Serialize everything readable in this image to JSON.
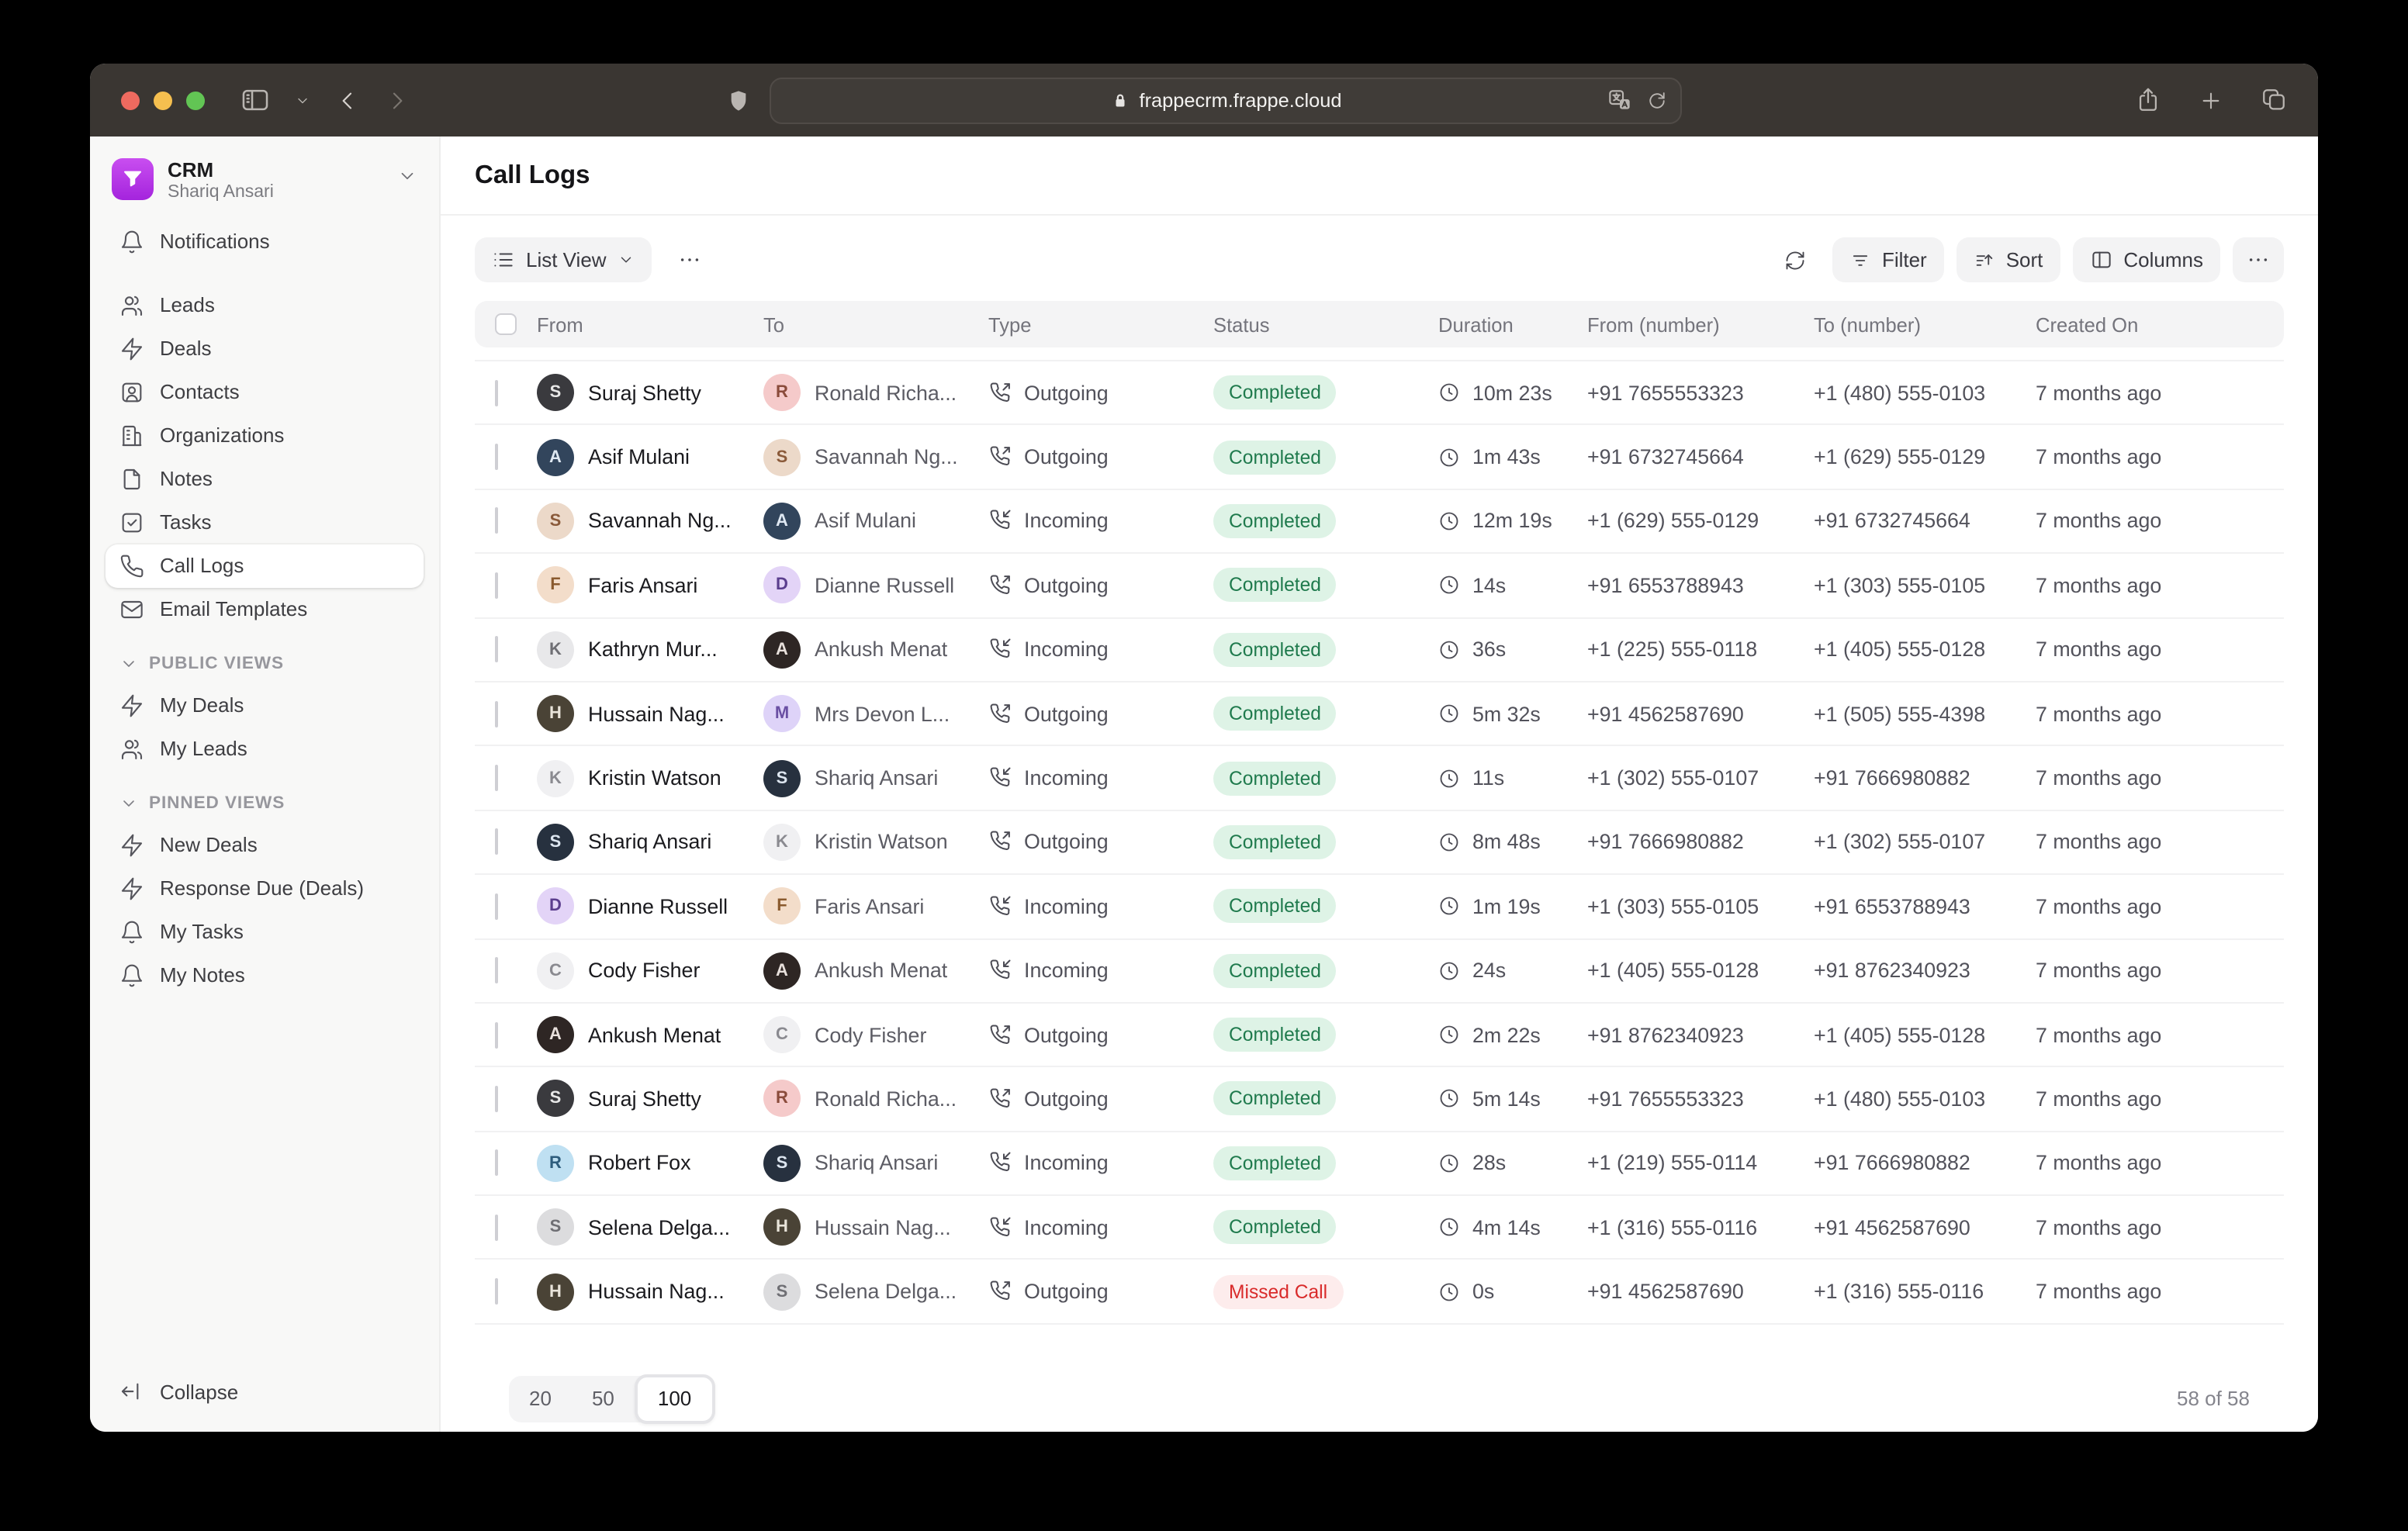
{
  "browser": {
    "url": "frappecrm.frappe.cloud",
    "traffic_lights": {
      "close": "#ee6a5f",
      "minimize": "#f5bf4f",
      "zoom": "#62c554"
    }
  },
  "sidebar": {
    "app": {
      "title": "CRM",
      "user": "Shariq Ansari"
    },
    "items": [
      {
        "label": "Notifications",
        "icon": "bell",
        "gap_after": true
      },
      {
        "label": "Leads",
        "icon": "users"
      },
      {
        "label": "Deals",
        "icon": "zap"
      },
      {
        "label": "Contacts",
        "icon": "contact"
      },
      {
        "label": "Organizations",
        "icon": "building"
      },
      {
        "label": "Notes",
        "icon": "file"
      },
      {
        "label": "Tasks",
        "icon": "check-square"
      },
      {
        "label": "Call Logs",
        "icon": "phone",
        "active": true
      },
      {
        "label": "Email Templates",
        "icon": "mail"
      }
    ],
    "sections": [
      {
        "label": "PUBLIC VIEWS",
        "items": [
          {
            "label": "My Deals",
            "icon": "zap"
          },
          {
            "label": "My Leads",
            "icon": "users"
          }
        ]
      },
      {
        "label": "PINNED VIEWS",
        "items": [
          {
            "label": "New Deals",
            "icon": "zap"
          },
          {
            "label": "Response Due (Deals)",
            "icon": "zap"
          },
          {
            "label": "My Tasks",
            "icon": "bell"
          },
          {
            "label": "My Notes",
            "icon": "bell"
          }
        ]
      }
    ],
    "collapse_label": "Collapse"
  },
  "main": {
    "page_title": "Call Logs",
    "toolbar": {
      "view_label": "List View",
      "filter_label": "Filter",
      "sort_label": "Sort",
      "columns_label": "Columns"
    },
    "table": {
      "columns": [
        "From",
        "To",
        "Type",
        "Status",
        "Duration",
        "From (number)",
        "To (number)",
        "Created On"
      ],
      "rows": [
        {
          "from_name": "Suraj Shetty",
          "from_avatar": "suraj",
          "to_name": "Ronald Richa...",
          "to_avatar": "ronald",
          "type": "Outgoing",
          "status": "Completed",
          "duration": "10m 23s",
          "from_number": "+91 7655553323",
          "to_number": "+1 (480) 555-0103",
          "created": "7 months ago"
        },
        {
          "from_name": "Asif Mulani",
          "from_avatar": "asif",
          "to_name": "Savannah Ng...",
          "to_avatar": "savannah",
          "type": "Outgoing",
          "status": "Completed",
          "duration": "1m 43s",
          "from_number": "+91 6732745664",
          "to_number": "+1 (629) 555-0129",
          "created": "7 months ago"
        },
        {
          "from_name": "Savannah Ng...",
          "from_avatar": "savannah",
          "to_name": "Asif Mulani",
          "to_avatar": "asif",
          "type": "Incoming",
          "status": "Completed",
          "duration": "12m 19s",
          "from_number": "+1 (629) 555-0129",
          "to_number": "+91 6732745664",
          "created": "7 months ago"
        },
        {
          "from_name": "Faris Ansari",
          "from_avatar": "faris",
          "to_name": "Dianne Russell",
          "to_avatar": "dianne",
          "type": "Outgoing",
          "status": "Completed",
          "duration": "14s",
          "from_number": "+91 6553788943",
          "to_number": "+1 (303) 555-0105",
          "created": "7 months ago"
        },
        {
          "from_name": "Kathryn Mur...",
          "from_avatar": "kathryn",
          "to_name": "Ankush Menat",
          "to_avatar": "ankush",
          "type": "Incoming",
          "status": "Completed",
          "duration": "36s",
          "from_number": "+1 (225) 555-0118",
          "to_number": "+1 (405) 555-0128",
          "created": "7 months ago"
        },
        {
          "from_name": "Hussain Nag...",
          "from_avatar": "hussain",
          "to_name": "Mrs Devon L...",
          "to_avatar": "devon",
          "type": "Outgoing",
          "status": "Completed",
          "duration": "5m 32s",
          "from_number": "+91 4562587690",
          "to_number": "+1 (505) 555-4398",
          "created": "7 months ago"
        },
        {
          "from_name": "Kristin Watson",
          "from_avatar": "kristin",
          "to_name": "Shariq Ansari",
          "to_avatar": "shariq",
          "type": "Incoming",
          "status": "Completed",
          "duration": "11s",
          "from_number": "+1 (302) 555-0107",
          "to_number": "+91 7666980882",
          "created": "7 months ago"
        },
        {
          "from_name": "Shariq Ansari",
          "from_avatar": "shariq",
          "to_name": "Kristin Watson",
          "to_avatar": "kristin",
          "type": "Outgoing",
          "status": "Completed",
          "duration": "8m 48s",
          "from_number": "+91 7666980882",
          "to_number": "+1 (302) 555-0107",
          "created": "7 months ago"
        },
        {
          "from_name": "Dianne Russell",
          "from_avatar": "dianne",
          "to_name": "Faris Ansari",
          "to_avatar": "faris",
          "type": "Incoming",
          "status": "Completed",
          "duration": "1m 19s",
          "from_number": "+1 (303) 555-0105",
          "to_number": "+91 6553788943",
          "created": "7 months ago"
        },
        {
          "from_name": "Cody Fisher",
          "from_avatar": "cody",
          "to_name": "Ankush Menat",
          "to_avatar": "ankush",
          "type": "Incoming",
          "status": "Completed",
          "duration": "24s",
          "from_number": "+1 (405) 555-0128",
          "to_number": "+91 8762340923",
          "created": "7 months ago"
        },
        {
          "from_name": "Ankush Menat",
          "from_avatar": "ankush",
          "to_name": "Cody Fisher",
          "to_avatar": "cody",
          "type": "Outgoing",
          "status": "Completed",
          "duration": "2m 22s",
          "from_number": "+91 8762340923",
          "to_number": "+1 (405) 555-0128",
          "created": "7 months ago"
        },
        {
          "from_name": "Suraj Shetty",
          "from_avatar": "suraj",
          "to_name": "Ronald Richa...",
          "to_avatar": "ronald",
          "type": "Outgoing",
          "status": "Completed",
          "duration": "5m 14s",
          "from_number": "+91 7655553323",
          "to_number": "+1 (480) 555-0103",
          "created": "7 months ago"
        },
        {
          "from_name": "Robert Fox",
          "from_avatar": "robert",
          "to_name": "Shariq Ansari",
          "to_avatar": "shariq",
          "type": "Incoming",
          "status": "Completed",
          "duration": "28s",
          "from_number": "+1 (219) 555-0114",
          "to_number": "+91 7666980882",
          "created": "7 months ago"
        },
        {
          "from_name": "Selena Delga...",
          "from_avatar": "selena",
          "to_name": "Hussain Nag...",
          "to_avatar": "hussain",
          "type": "Incoming",
          "status": "Completed",
          "duration": "4m 14s",
          "from_number": "+1 (316) 555-0116",
          "to_number": "+91 4562587690",
          "created": "7 months ago"
        },
        {
          "from_name": "Hussain Nag...",
          "from_avatar": "hussain",
          "to_name": "Selena Delga...",
          "to_avatar": "selena",
          "type": "Outgoing",
          "status": "Missed Call",
          "duration": "0s",
          "from_number": "+91 4562587690",
          "to_number": "+1 (316) 555-0116",
          "created": "7 months ago"
        }
      ]
    },
    "pagination": {
      "options": [
        "20",
        "50",
        "100"
      ],
      "selected": "100",
      "count": "58 of 58"
    }
  },
  "avatars": {
    "suraj": {
      "initial": "S",
      "bg": "#3a3a3e",
      "fg": "#e8e8e8"
    },
    "ronald": {
      "initial": "R",
      "bg": "#f5caca",
      "fg": "#8a4b3b"
    },
    "asif": {
      "initial": "A",
      "bg": "#32455c",
      "fg": "#dfe8f2"
    },
    "savannah": {
      "initial": "S",
      "bg": "#ecd9c9",
      "fg": "#8a5a3a"
    },
    "faris": {
      "initial": "F",
      "bg": "#f3ddca",
      "fg": "#8a5a2e"
    },
    "dianne": {
      "initial": "D",
      "bg": "#e3d4f7",
      "fg": "#5b3e8e"
    },
    "kathryn": {
      "initial": "K",
      "bg": "#e8e8ea",
      "fg": "#6f6f74"
    },
    "ankush": {
      "initial": "A",
      "bg": "#2e2624",
      "fg": "#e8e0dc"
    },
    "hussain": {
      "initial": "H",
      "bg": "#4a4336",
      "fg": "#e9e4da"
    },
    "devon": {
      "initial": "M",
      "bg": "#ded3f8",
      "fg": "#6a4fa3"
    },
    "kristin": {
      "initial": "K",
      "bg": "#f0f0f2",
      "fg": "#8a8a90"
    },
    "shariq": {
      "initial": "S",
      "bg": "#27313f",
      "fg": "#dde6f0"
    },
    "cody": {
      "initial": "C",
      "bg": "#f0f0f2",
      "fg": "#8a8a90"
    },
    "robert": {
      "initial": "R",
      "bg": "#bfe0f2",
      "fg": "#2e5d7d"
    },
    "selena": {
      "initial": "S",
      "bg": "#dcdcde",
      "fg": "#6f6f74"
    }
  },
  "colors": {
    "status_completed": {
      "bg": "#def3e6",
      "fg": "#1f7a4d"
    },
    "status_missed": {
      "bg": "#fdecec",
      "fg": "#d92b2b"
    }
  }
}
